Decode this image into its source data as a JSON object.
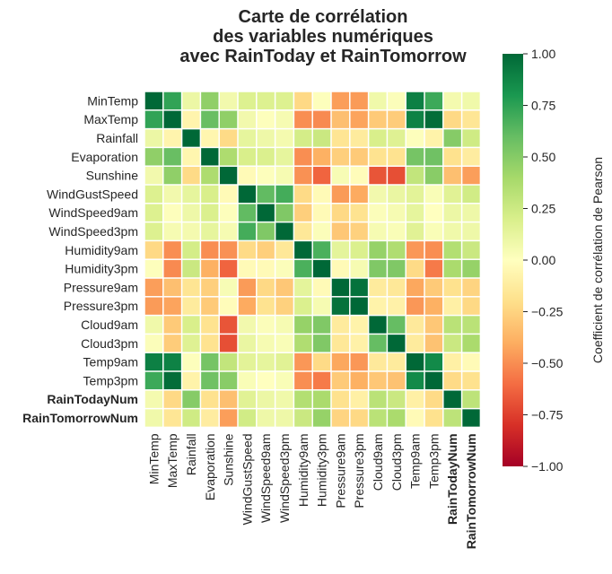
{
  "chart_data": {
    "type": "heatmap",
    "title_lines": [
      "Carte de corrélation",
      "des variables numériques",
      "avec RainToday et RainTomorrow"
    ],
    "variables": [
      "MinTemp",
      "MaxTemp",
      "Rainfall",
      "Evaporation",
      "Sunshine",
      "WindGustSpeed",
      "WindSpeed9am",
      "WindSpeed3pm",
      "Humidity9am",
      "Humidity3pm",
      "Pressure9am",
      "Pressure3pm",
      "Cloud9am",
      "Cloud3pm",
      "Temp9am",
      "Temp3pm",
      "RainTodayNum",
      "RainTomorrowNum"
    ],
    "bold_variables": [
      "RainTodayNum",
      "RainTomorrowNum"
    ],
    "matrix": [
      [
        1.0,
        0.74,
        0.1,
        0.47,
        0.07,
        0.18,
        0.18,
        0.18,
        -0.23,
        0.01,
        -0.45,
        -0.46,
        0.08,
        0.02,
        0.9,
        0.71,
        0.06,
        0.08
      ],
      [
        0.74,
        1.0,
        -0.07,
        0.59,
        0.47,
        0.07,
        0.01,
        0.05,
        -0.5,
        -0.51,
        -0.33,
        -0.43,
        -0.29,
        -0.28,
        0.89,
        0.98,
        -0.23,
        -0.16
      ],
      [
        0.1,
        -0.07,
        1.0,
        -0.06,
        -0.22,
        0.13,
        0.09,
        0.06,
        0.22,
        0.26,
        -0.17,
        -0.13,
        0.2,
        0.17,
        0.01,
        -0.08,
        0.5,
        0.24
      ],
      [
        0.47,
        0.59,
        -0.06,
        1.0,
        0.37,
        0.2,
        0.19,
        0.13,
        -0.5,
        -0.39,
        -0.27,
        -0.29,
        -0.18,
        -0.18,
        0.55,
        0.57,
        -0.19,
        -0.12
      ],
      [
        0.07,
        0.47,
        -0.22,
        0.37,
        1.0,
        -0.03,
        0.01,
        0.05,
        -0.49,
        -0.63,
        0.04,
        -0.02,
        -0.68,
        -0.7,
        0.29,
        0.49,
        -0.33,
        -0.45
      ],
      [
        0.18,
        0.07,
        0.13,
        0.2,
        -0.03,
        1.0,
        0.61,
        0.69,
        -0.22,
        -0.03,
        -0.46,
        -0.41,
        0.07,
        0.11,
        0.15,
        0.03,
        0.16,
        0.23
      ],
      [
        0.18,
        0.01,
        0.09,
        0.19,
        0.01,
        0.61,
        1.0,
        0.52,
        -0.27,
        -0.03,
        -0.23,
        -0.18,
        0.02,
        0.05,
        0.13,
        0.0,
        0.1,
        0.09
      ],
      [
        0.18,
        0.05,
        0.06,
        0.13,
        0.05,
        0.69,
        0.52,
        1.0,
        -0.15,
        0.02,
        -0.3,
        -0.26,
        0.05,
        0.03,
        0.16,
        0.03,
        0.08,
        0.09
      ],
      [
        -0.23,
        -0.5,
        0.22,
        -0.5,
        -0.49,
        -0.22,
        -0.27,
        -0.15,
        1.0,
        0.67,
        0.14,
        0.19,
        0.45,
        0.36,
        -0.47,
        -0.5,
        0.35,
        0.26
      ],
      [
        0.01,
        -0.51,
        0.26,
        -0.39,
        -0.63,
        -0.03,
        -0.03,
        0.02,
        0.67,
        1.0,
        -0.03,
        0.05,
        0.52,
        0.52,
        -0.22,
        -0.56,
        0.38,
        0.45
      ],
      [
        -0.45,
        -0.33,
        -0.17,
        -0.27,
        0.04,
        -0.46,
        -0.23,
        -0.3,
        0.14,
        -0.03,
        1.0,
        0.96,
        -0.13,
        -0.15,
        -0.42,
        -0.29,
        -0.19,
        -0.25
      ],
      [
        -0.46,
        -0.43,
        -0.13,
        -0.29,
        -0.02,
        -0.41,
        -0.18,
        -0.26,
        0.19,
        0.05,
        0.96,
        1.0,
        -0.08,
        -0.09,
        -0.47,
        -0.39,
        -0.1,
        -0.23
      ],
      [
        0.08,
        -0.29,
        0.2,
        -0.18,
        -0.68,
        0.07,
        0.02,
        0.05,
        0.45,
        0.52,
        -0.13,
        -0.08,
        1.0,
        0.6,
        -0.14,
        -0.3,
        0.32,
        0.32
      ],
      [
        0.02,
        -0.28,
        0.17,
        -0.18,
        -0.7,
        0.11,
        0.05,
        0.03,
        0.36,
        0.52,
        -0.15,
        -0.09,
        0.6,
        1.0,
        -0.13,
        -0.32,
        0.26,
        0.38
      ],
      [
        0.9,
        0.89,
        0.01,
        0.55,
        0.29,
        0.15,
        0.13,
        0.16,
        -0.47,
        -0.22,
        -0.42,
        -0.47,
        -0.14,
        -0.13,
        1.0,
        0.86,
        -0.1,
        -0.03
      ],
      [
        0.71,
        0.98,
        -0.08,
        0.57,
        0.49,
        0.03,
        0.0,
        0.03,
        -0.5,
        -0.56,
        -0.29,
        -0.39,
        -0.3,
        -0.32,
        0.86,
        1.0,
        -0.22,
        -0.19
      ],
      [
        0.06,
        -0.23,
        0.5,
        -0.19,
        -0.33,
        0.16,
        0.1,
        0.08,
        0.35,
        0.38,
        -0.19,
        -0.1,
        0.32,
        0.26,
        -0.1,
        -0.22,
        1.0,
        0.31
      ],
      [
        0.08,
        -0.16,
        0.24,
        -0.12,
        -0.45,
        0.23,
        0.09,
        0.09,
        0.26,
        0.45,
        -0.25,
        -0.23,
        0.32,
        0.38,
        -0.03,
        -0.19,
        0.31,
        1.0
      ]
    ],
    "vmin": -1.0,
    "vmax": 1.0,
    "colormap": "RdYlGn",
    "colorbar": {
      "label": "Coefficient de corrélation de Pearson",
      "ticks": [
        1.0,
        0.75,
        0.5,
        0.25,
        0.0,
        -0.25,
        -0.5,
        -0.75,
        -1.0
      ],
      "tick_labels": [
        "1.00",
        "0.75",
        "0.50",
        "0.25",
        "0.00",
        "−0.25",
        "−0.50",
        "−0.75",
        "−1.00"
      ]
    },
    "colors": {
      "cell_border": "#ffffff",
      "text": "#262626"
    }
  }
}
